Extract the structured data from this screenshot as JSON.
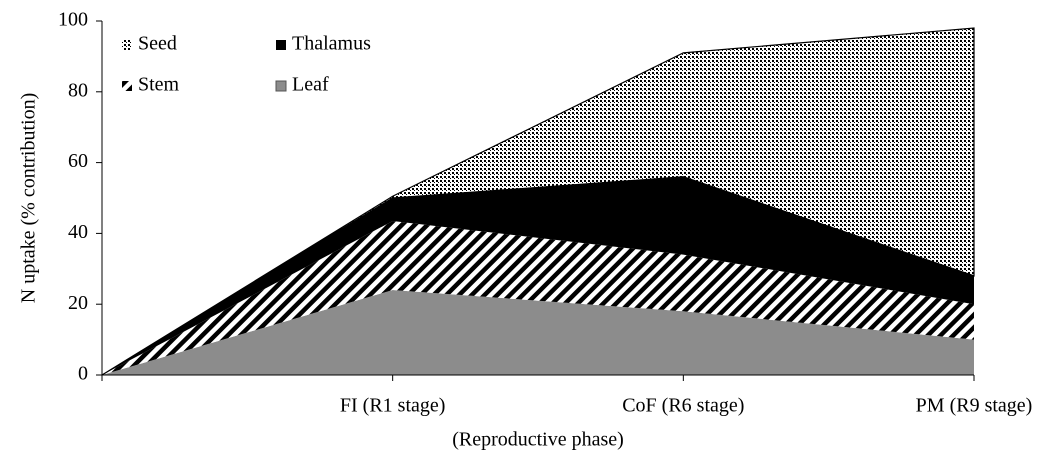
{
  "chart_data": {
    "type": "stacked-area",
    "categories": [
      null,
      "FI (R1 stage)",
      "CoF (R6 stage)",
      "PM (R9 stage)"
    ],
    "series": [
      {
        "name": "Leaf",
        "color": "#8c8c8c",
        "pattern": "solid",
        "values": [
          0,
          24,
          18,
          10
        ]
      },
      {
        "name": "Stem",
        "color": "#000000",
        "pattern": "diagonal",
        "values": [
          0,
          19.5,
          16,
          10
        ]
      },
      {
        "name": "Thalamus",
        "color": "#000000",
        "pattern": "solid",
        "values": [
          0,
          6.5,
          22,
          8
        ]
      },
      {
        "name": "Seed",
        "color": "#000000",
        "pattern": "dots",
        "values": [
          0,
          0.5,
          35,
          70
        ]
      }
    ],
    "ylim": [
      0,
      100
    ],
    "yticks": [
      0,
      20,
      40,
      60,
      80,
      100
    ],
    "y_label": "N uptake (% contribution)",
    "x_label": "(Reproductive phase)",
    "legend": "upper left"
  }
}
